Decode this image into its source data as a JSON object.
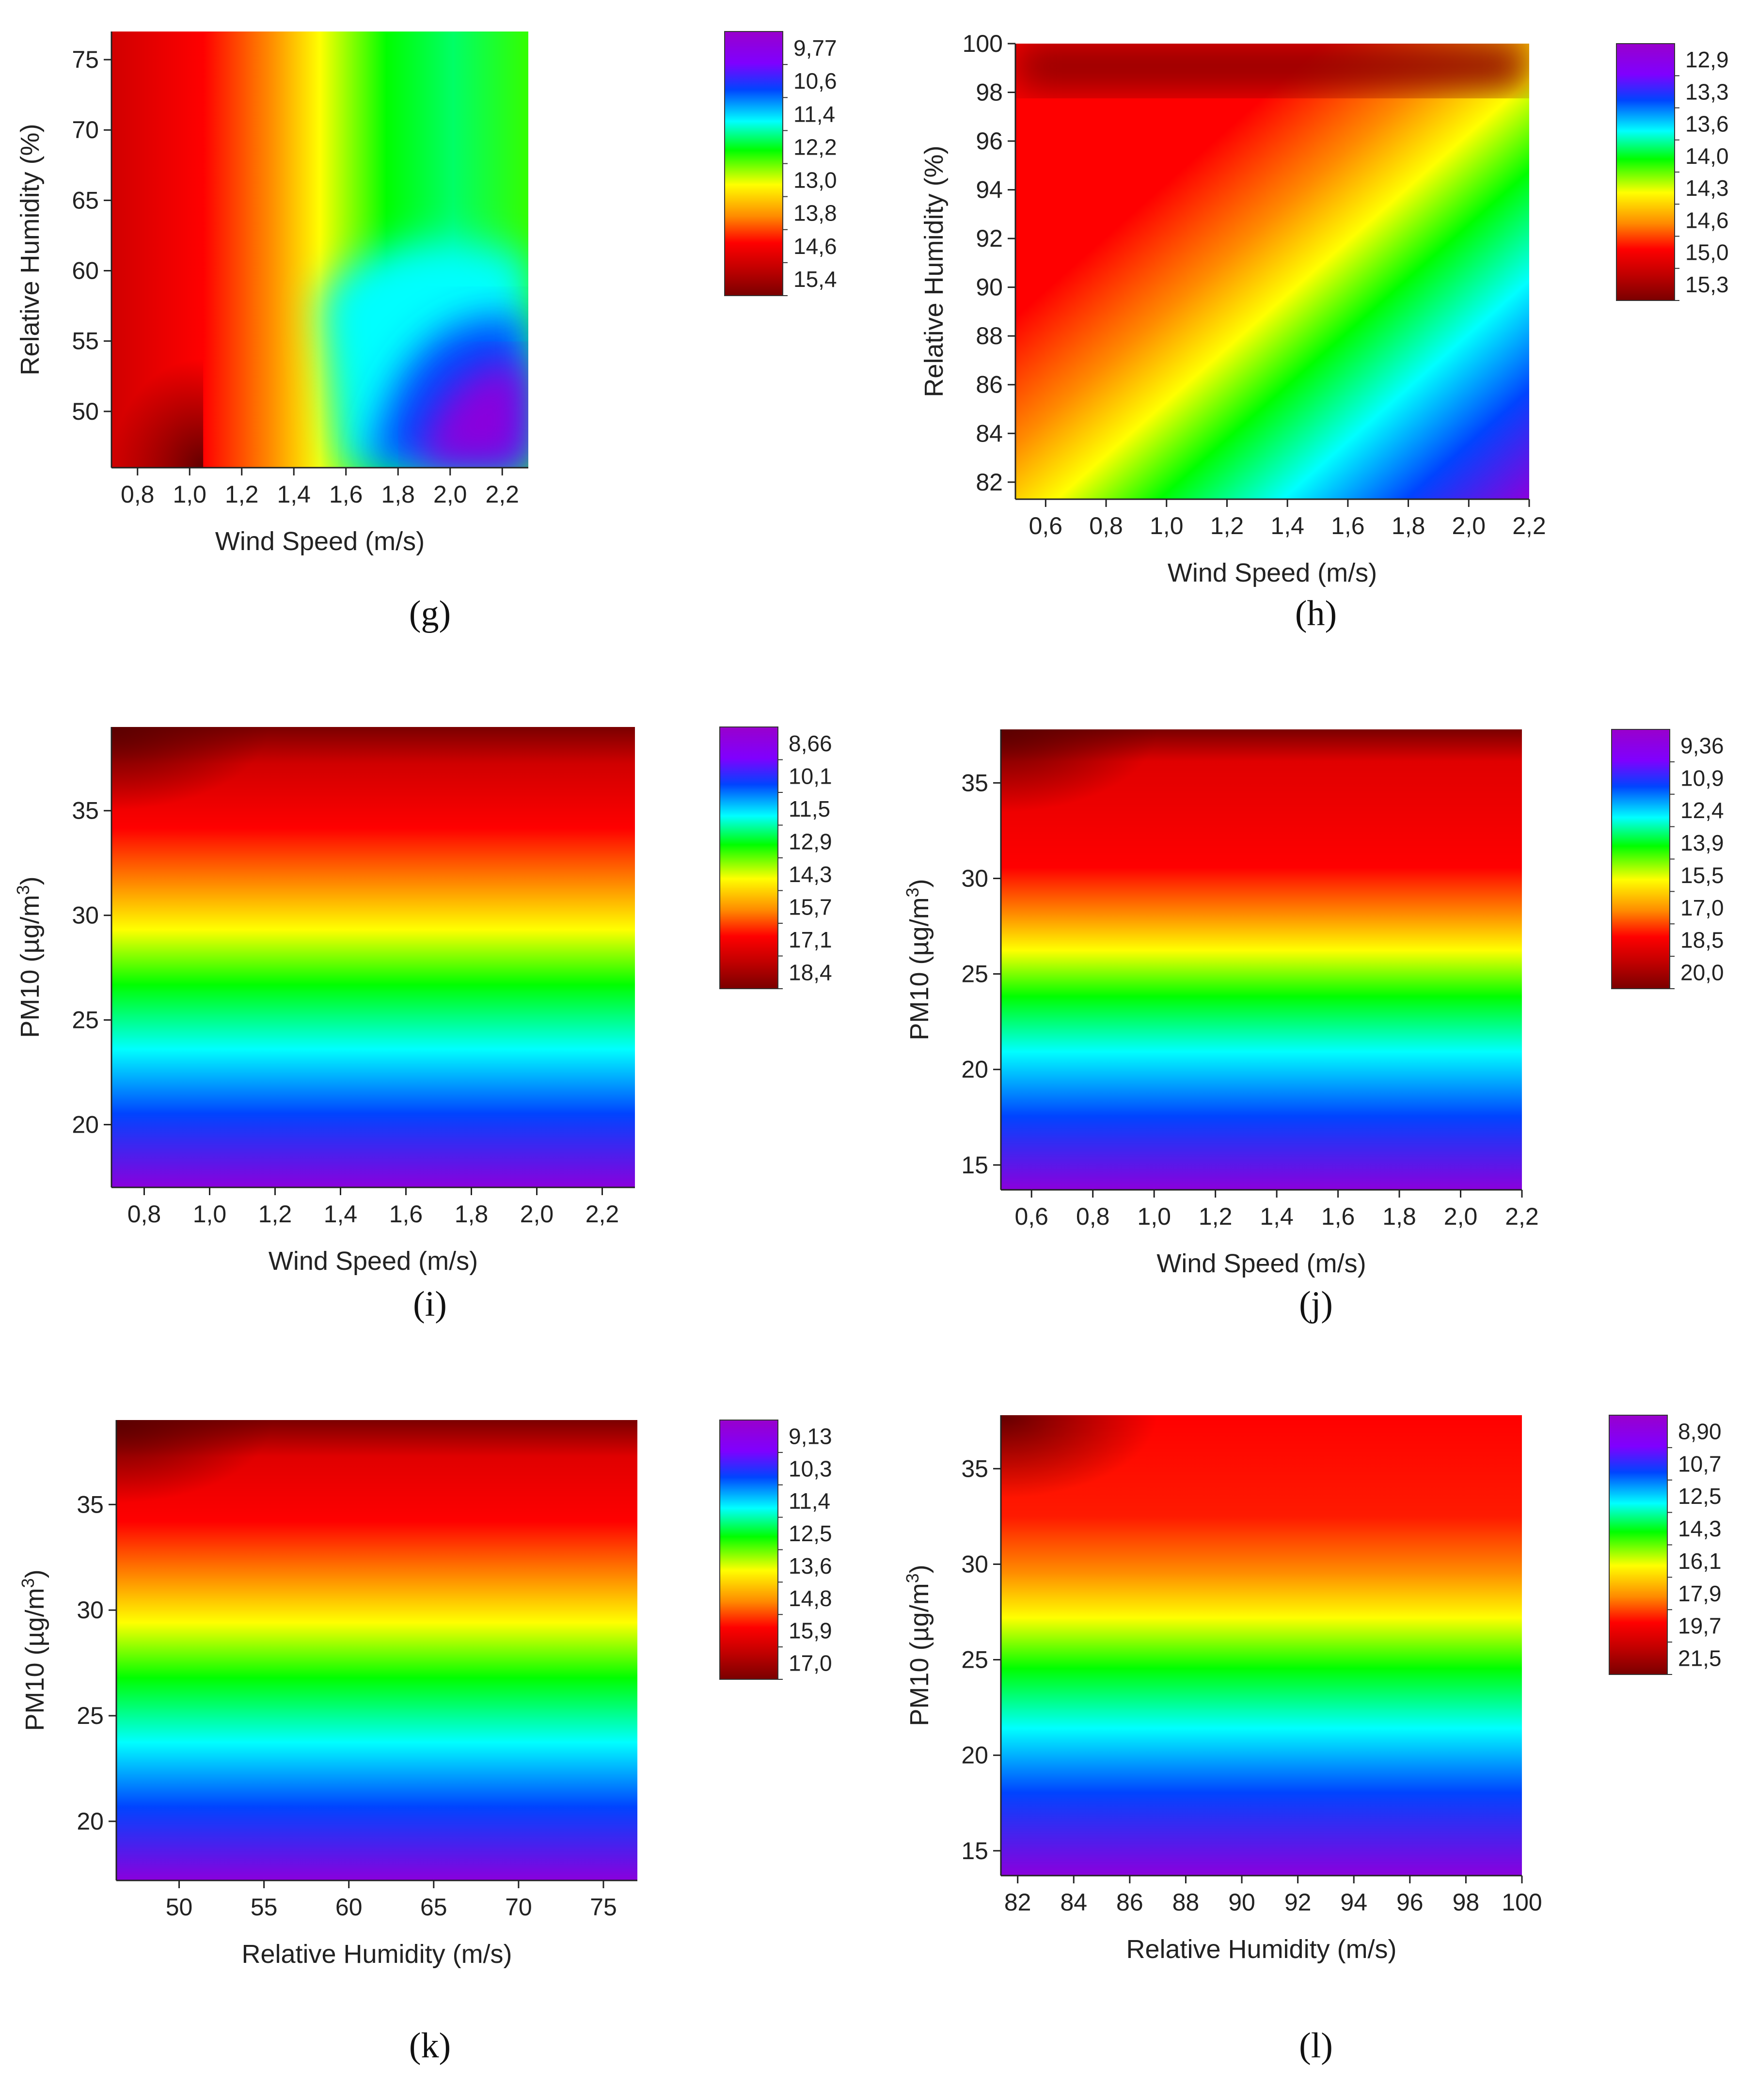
{
  "colors": {
    "scale": [
      "#7a0000",
      "#c00000",
      "#ff0000",
      "#ff8a00",
      "#ffff00",
      "#00ff00",
      "#00ffff",
      "#0044ff",
      "#7f00ff",
      "#9900cc"
    ]
  },
  "chart_data": [
    {
      "id": "g",
      "type": "heatmap",
      "caption": "(g)",
      "xlabel": "Wind Speed (m/s)",
      "ylabel": "Relative Humidity (%)",
      "xlim": [
        0.7,
        2.3
      ],
      "ylim": [
        46,
        77
      ],
      "xticks": [
        "0,8",
        "1,0",
        "1,2",
        "1,4",
        "1,6",
        "1,8",
        "2,0",
        "2,2"
      ],
      "xtick_values": [
        0.8,
        1.0,
        1.2,
        1.4,
        1.6,
        1.8,
        2.0,
        2.2
      ],
      "yticks": [
        "50",
        "55",
        "60",
        "65",
        "70",
        "75"
      ],
      "ytick_values": [
        50,
        55,
        60,
        65,
        70,
        75
      ],
      "colorbar": [
        "9,77",
        "10,6",
        "11,4",
        "12,2",
        "13,0",
        "13,8",
        "14,6",
        "15,4"
      ],
      "zlim": [
        9.77,
        15.4
      ]
    },
    {
      "id": "h",
      "type": "heatmap",
      "caption": "(h)",
      "xlabel": "Wind Speed (m/s)",
      "ylabel": "Relative Humidity (%)",
      "xlim": [
        0.5,
        2.2
      ],
      "ylim": [
        81.3,
        100
      ],
      "xticks": [
        "0,6",
        "0,8",
        "1,0",
        "1,2",
        "1,4",
        "1,6",
        "1,8",
        "2,0",
        "2,2"
      ],
      "xtick_values": [
        0.6,
        0.8,
        1.0,
        1.2,
        1.4,
        1.6,
        1.8,
        2.0,
        2.2
      ],
      "yticks": [
        "82",
        "84",
        "86",
        "88",
        "90",
        "92",
        "94",
        "96",
        "98",
        "100"
      ],
      "ytick_values": [
        82,
        84,
        86,
        88,
        90,
        92,
        94,
        96,
        98,
        100
      ],
      "colorbar": [
        "12,9",
        "13,3",
        "13,6",
        "14,0",
        "14,3",
        "14,6",
        "15,0",
        "15,3"
      ],
      "zlim": [
        12.9,
        15.3
      ]
    },
    {
      "id": "i",
      "type": "heatmap",
      "caption": "(i)",
      "xlabel": "Wind Speed (m/s)",
      "ylabel": "PM10 (µg/m",
      "ylabel_sup": "3",
      "ylabel_end": ")",
      "xlim": [
        0.7,
        2.3
      ],
      "ylim": [
        17,
        39
      ],
      "xticks": [
        "0,8",
        "1,0",
        "1,2",
        "1,4",
        "1,6",
        "1,8",
        "2,0",
        "2,2"
      ],
      "xtick_values": [
        0.8,
        1.0,
        1.2,
        1.4,
        1.6,
        1.8,
        2.0,
        2.2
      ],
      "yticks": [
        "20",
        "25",
        "30",
        "35"
      ],
      "ytick_values": [
        20,
        25,
        30,
        35
      ],
      "colorbar": [
        "8,66",
        "10,1",
        "11,5",
        "12,9",
        "14,3",
        "15,7",
        "17,1",
        "18,4"
      ],
      "zlim": [
        8.66,
        18.4
      ]
    },
    {
      "id": "j",
      "type": "heatmap",
      "caption": "(j)",
      "xlabel": "Wind Speed (m/s)",
      "ylabel": "PM10 (µg/m",
      "ylabel_sup": "3",
      "ylabel_end": ")",
      "xlim": [
        0.5,
        2.2
      ],
      "ylim": [
        13.7,
        37.8
      ],
      "xticks": [
        "0,6",
        "0,8",
        "1,0",
        "1,2",
        "1,4",
        "1,6",
        "1,8",
        "2,0",
        "2,2"
      ],
      "xtick_values": [
        0.6,
        0.8,
        1.0,
        1.2,
        1.4,
        1.6,
        1.8,
        2.0,
        2.2
      ],
      "yticks": [
        "15",
        "20",
        "25",
        "30",
        "35"
      ],
      "ytick_values": [
        15,
        20,
        25,
        30,
        35
      ],
      "colorbar": [
        "9,36",
        "10,9",
        "12,4",
        "13,9",
        "15,5",
        "17,0",
        "18,5",
        "20,0"
      ],
      "zlim": [
        9.36,
        20.0
      ]
    },
    {
      "id": "k",
      "type": "heatmap",
      "caption": "(k)",
      "xlabel": "Relative Humidity (m/s)",
      "ylabel": "PM10 (µg/m",
      "ylabel_sup": "3",
      "ylabel_end": ")",
      "xlim": [
        46.3,
        77
      ],
      "ylim": [
        17.2,
        39
      ],
      "xticks": [
        "50",
        "55",
        "60",
        "65",
        "70",
        "75"
      ],
      "xtick_values": [
        50,
        55,
        60,
        65,
        70,
        75
      ],
      "yticks": [
        "20",
        "25",
        "30",
        "35"
      ],
      "ytick_values": [
        20,
        25,
        30,
        35
      ],
      "colorbar": [
        "9,13",
        "10,3",
        "11,4",
        "12,5",
        "13,6",
        "14,8",
        "15,9",
        "17,0"
      ],
      "zlim": [
        9.13,
        17.0
      ]
    },
    {
      "id": "l",
      "type": "heatmap",
      "caption": "(l)",
      "xlabel": "Relative Humidity (m/s)",
      "ylabel": "PM10 (µg/m",
      "ylabel_sup": "3",
      "ylabel_end": ")",
      "xlim": [
        81.4,
        100
      ],
      "ylim": [
        13.7,
        37.8
      ],
      "xticks": [
        "82",
        "84",
        "86",
        "88",
        "90",
        "92",
        "94",
        "96",
        "98",
        "100"
      ],
      "xtick_values": [
        82,
        84,
        86,
        88,
        90,
        92,
        94,
        96,
        98,
        100
      ],
      "yticks": [
        "15",
        "20",
        "25",
        "30",
        "35"
      ],
      "ytick_values": [
        15,
        20,
        25,
        30,
        35
      ],
      "colorbar": [
        "8,90",
        "10,7",
        "12,5",
        "14,3",
        "16,1",
        "17,9",
        "19,7",
        "21,5"
      ],
      "zlim": [
        8.9,
        21.5
      ]
    }
  ]
}
